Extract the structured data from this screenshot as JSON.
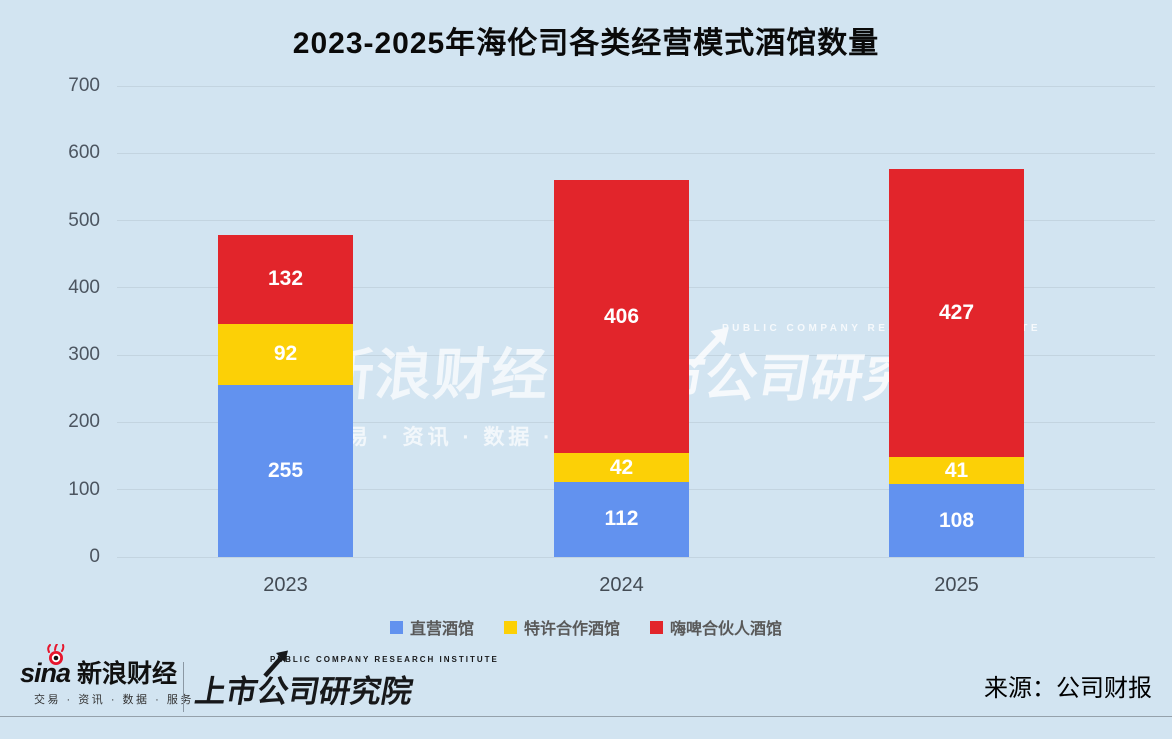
{
  "title": "2023-2025年海伦司各类经营模式酒馆数量",
  "chart_data": {
    "type": "bar",
    "stacked": true,
    "title": "2023-2025年海伦司各类经营模式酒馆数量",
    "categories": [
      "2023",
      "2024",
      "2025"
    ],
    "series": [
      {
        "name": "直营酒馆",
        "color": "#6292ef",
        "values": [
          255,
          112,
          108
        ]
      },
      {
        "name": "特许合作酒馆",
        "color": "#fcd006",
        "values": [
          92,
          42,
          41
        ]
      },
      {
        "name": "嗨啤合伙人酒馆",
        "color": "#e2252b",
        "values": [
          132,
          406,
          427
        ]
      }
    ],
    "totals": [
      479,
      560,
      576
    ],
    "xlabel": "",
    "ylabel": "",
    "ylim": [
      0,
      700
    ],
    "yticks": [
      0,
      100,
      200,
      300,
      400,
      500,
      600,
      700
    ],
    "grid": true,
    "legend_position": "bottom"
  },
  "watermark": {
    "left_main": "新浪财经",
    "left_sub": "交易 · 资讯 · 数据 · 服务",
    "right_en": "PUBLIC COMPANY RESEARCH INSTITUTE",
    "right_main": "上市公司研究院"
  },
  "footer": {
    "sina_wordmark": "sina",
    "sina_brand": "新浪财经",
    "sina_tagline": "交易 · 资讯 · 数据 · 服务",
    "institute_en": "PUBLIC COMPANY RESEARCH INSTITUTE",
    "institute_cn": "上市公司研究院",
    "source": "来源：公司财报"
  },
  "colors": {
    "background": "#d2e4f1",
    "gridline": "#c3d4e0",
    "axis_text": "#4c5560",
    "legend_text": "#595959",
    "bar_label": "#ffffff",
    "sina_red": "#e6162d",
    "footer_divider": "#95a1ab"
  }
}
